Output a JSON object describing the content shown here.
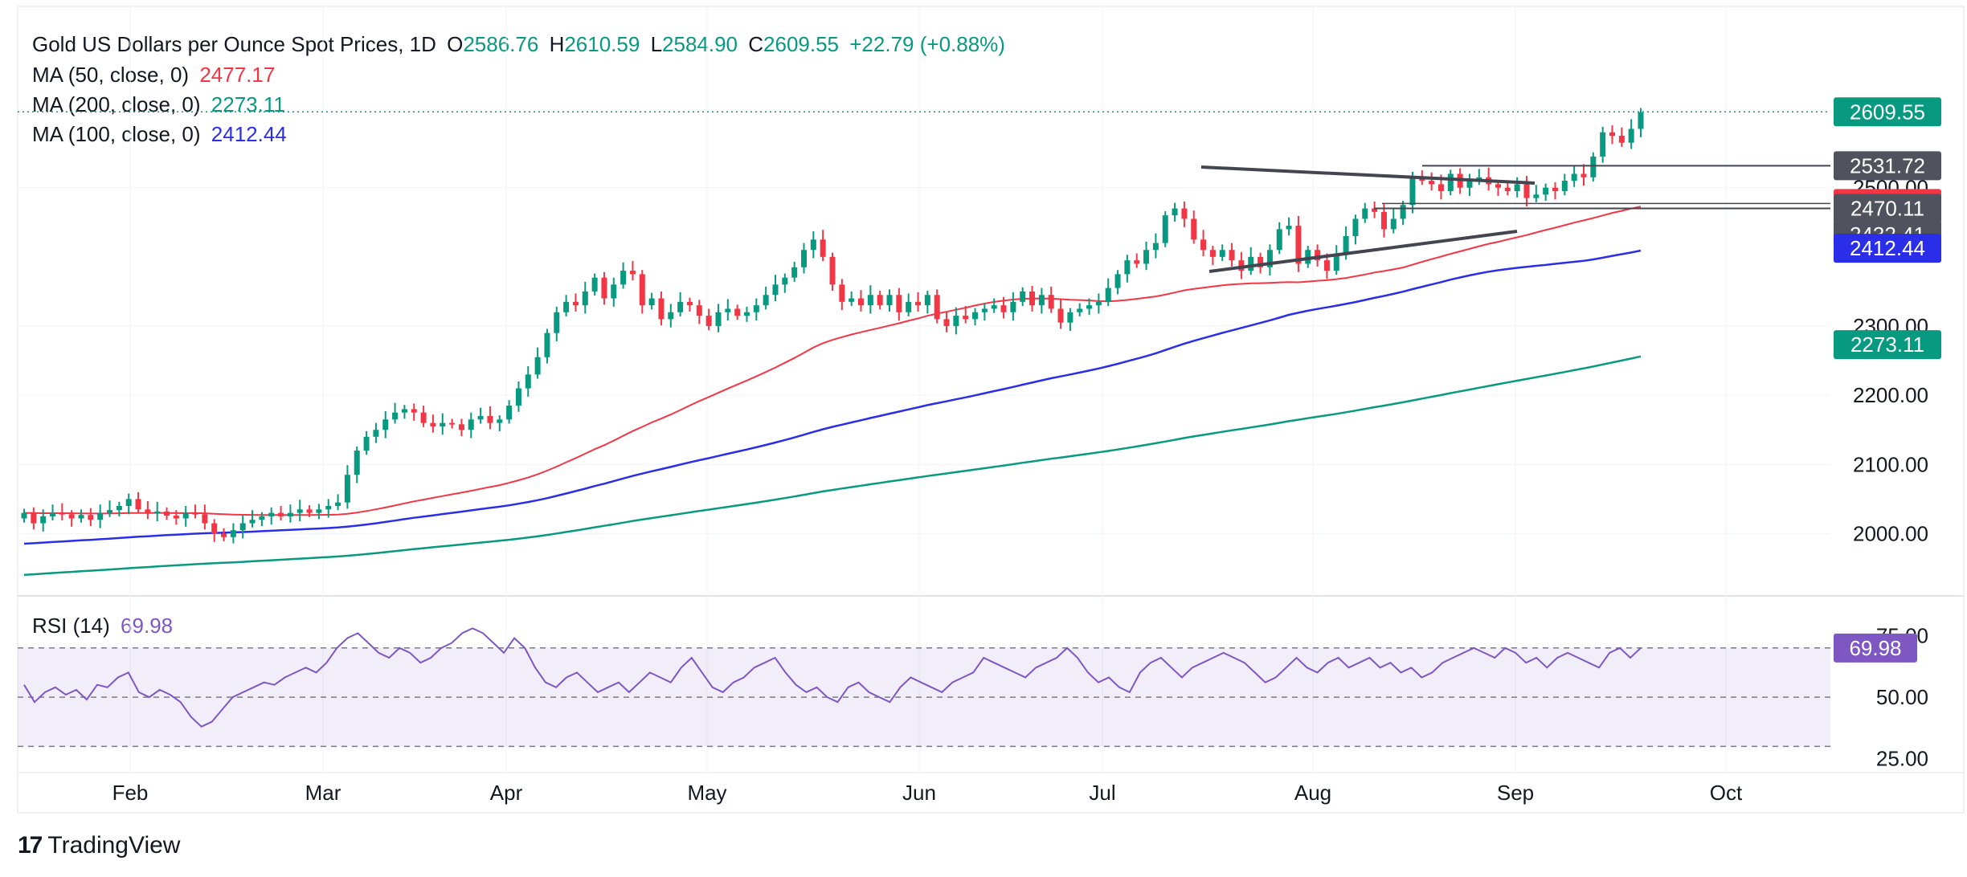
{
  "header": {
    "title": "Gold US Dollars per Ounce Spot Prices, 1D",
    "o_label": "O",
    "o_value": "2586.76",
    "h_label": "H",
    "h_value": "2610.59",
    "l_label": "L",
    "l_value": "2584.90",
    "c_label": "C",
    "c_value": "2609.55",
    "change": "+22.79 (+0.88%)"
  },
  "indicators": [
    {
      "label": "MA (50, close, 0)",
      "value": "2477.17",
      "color": "#f23645"
    },
    {
      "label": "MA (200, close, 0)",
      "value": "2273.11",
      "color": "#089981"
    },
    {
      "label": "MA (100, close, 0)",
      "value": "2412.44",
      "color": "#2a2ee8"
    }
  ],
  "rsi": {
    "label": "RSI (14)",
    "value": "69.98",
    "color": "#7e57c2"
  },
  "brand": {
    "name": "TradingView",
    "mark": "17"
  },
  "colors": {
    "up": "#089981",
    "down": "#f23645",
    "ma50": "#f23645",
    "ma100": "#2a2ee8",
    "ma200": "#089981",
    "rsi": "#7e57c2"
  },
  "chart_data": {
    "type": "candlestick",
    "x_labels": [
      "Feb",
      "Mar",
      "Apr",
      "May",
      "Jun",
      "Jul",
      "Aug",
      "Sep",
      "Oct"
    ],
    "y_ticks": [
      "2000.00",
      "2100.00",
      "2200.00",
      "2300.00",
      "2500.00"
    ],
    "ylim": [
      1910,
      2690
    ],
    "rsi_ticks": [
      "25.00",
      "50.00",
      "75.00"
    ],
    "rsi_ylim": [
      20,
      82
    ],
    "price_tags": [
      {
        "value": 2609.55,
        "label": "2609.55",
        "bg": "#089981",
        "fg": "#ffffff"
      },
      {
        "value": 2531.72,
        "label": "2531.72",
        "bg": "#50535e",
        "fg": "#ffffff"
      },
      {
        "value": 2477.17,
        "label": "2477.17",
        "bg": "#f23645",
        "fg": "#ffffff"
      },
      {
        "value": 2470.11,
        "label": "2470.11",
        "bg": "#50535e",
        "fg": "#ffffff"
      },
      {
        "value": 2432.41,
        "label": "2432.41",
        "bg": "#50535e",
        "fg": "#ffffff"
      },
      {
        "value": 2412.44,
        "label": "2412.44",
        "bg": "#2a2ee8",
        "fg": "#ffffff"
      },
      {
        "value": 2273.11,
        "label": "2273.11",
        "bg": "#089981",
        "fg": "#ffffff"
      }
    ],
    "rsi_tag": {
      "value": 69.98,
      "label": "69.98"
    },
    "closes": [
      2030,
      2015,
      2025,
      2030,
      2028,
      2022,
      2027,
      2020,
      2030,
      2034,
      2040,
      2050,
      2035,
      2030,
      2032,
      2026,
      2022,
      2030,
      2028,
      2015,
      2000,
      1995,
      2005,
      2015,
      2020,
      2025,
      2030,
      2025,
      2030,
      2035,
      2030,
      2035,
      2040,
      2045,
      2085,
      2120,
      2140,
      2150,
      2165,
      2175,
      2180,
      2175,
      2160,
      2155,
      2160,
      2158,
      2150,
      2165,
      2170,
      2160,
      2165,
      2185,
      2210,
      2230,
      2255,
      2290,
      2320,
      2335,
      2330,
      2350,
      2370,
      2340,
      2360,
      2380,
      2375,
      2330,
      2340,
      2310,
      2320,
      2335,
      2330,
      2315,
      2300,
      2320,
      2325,
      2315,
      2320,
      2330,
      2345,
      2360,
      2370,
      2385,
      2410,
      2425,
      2400,
      2360,
      2335,
      2340,
      2330,
      2345,
      2330,
      2345,
      2320,
      2335,
      2330,
      2345,
      2310,
      2300,
      2315,
      2310,
      2320,
      2325,
      2330,
      2320,
      2335,
      2350,
      2330,
      2345,
      2325,
      2305,
      2320,
      2325,
      2330,
      2335,
      2355,
      2375,
      2395,
      2390,
      2410,
      2420,
      2460,
      2470,
      2455,
      2425,
      2410,
      2400,
      2410,
      2395,
      2380,
      2400,
      2385,
      2410,
      2440,
      2445,
      2390,
      2410,
      2395,
      2380,
      2405,
      2430,
      2455,
      2470,
      2465,
      2440,
      2455,
      2475,
      2515,
      2510,
      2505,
      2495,
      2520,
      2500,
      2510,
      2515,
      2505,
      2500,
      2495,
      2505,
      2485,
      2490,
      2500,
      2495,
      2510,
      2520,
      2515,
      2545,
      2580,
      2575,
      2565,
      2585,
      2609
    ],
    "rsi_values": [
      55,
      48,
      52,
      54,
      51,
      53,
      49,
      55,
      54,
      58,
      60,
      52,
      50,
      53,
      51,
      48,
      42,
      38,
      40,
      45,
      50,
      52,
      54,
      56,
      55,
      58,
      60,
      62,
      60,
      64,
      70,
      74,
      76,
      72,
      68,
      66,
      70,
      68,
      64,
      66,
      70,
      72,
      76,
      78,
      76,
      72,
      68,
      74,
      70,
      62,
      56,
      54,
      58,
      60,
      56,
      52,
      54,
      56,
      52,
      56,
      60,
      58,
      56,
      62,
      66,
      60,
      54,
      52,
      56,
      58,
      62,
      64,
      66,
      60,
      55,
      52,
      54,
      50,
      48,
      54,
      56,
      52,
      50,
      48,
      54,
      58,
      56,
      54,
      52,
      56,
      58,
      60,
      66,
      64,
      62,
      60,
      58,
      62,
      64,
      66,
      70,
      66,
      60,
      56,
      58,
      54,
      52,
      60,
      64,
      66,
      62,
      58,
      62,
      64,
      66,
      68,
      66,
      64,
      60,
      56,
      58,
      62,
      66,
      62,
      60,
      64,
      66,
      62,
      64,
      66,
      62,
      64,
      60,
      62,
      58,
      60,
      64,
      66,
      68,
      70,
      68,
      66,
      70,
      68,
      64,
      66,
      62,
      66,
      68,
      66,
      64,
      62,
      68,
      70,
      66,
      70
    ]
  }
}
